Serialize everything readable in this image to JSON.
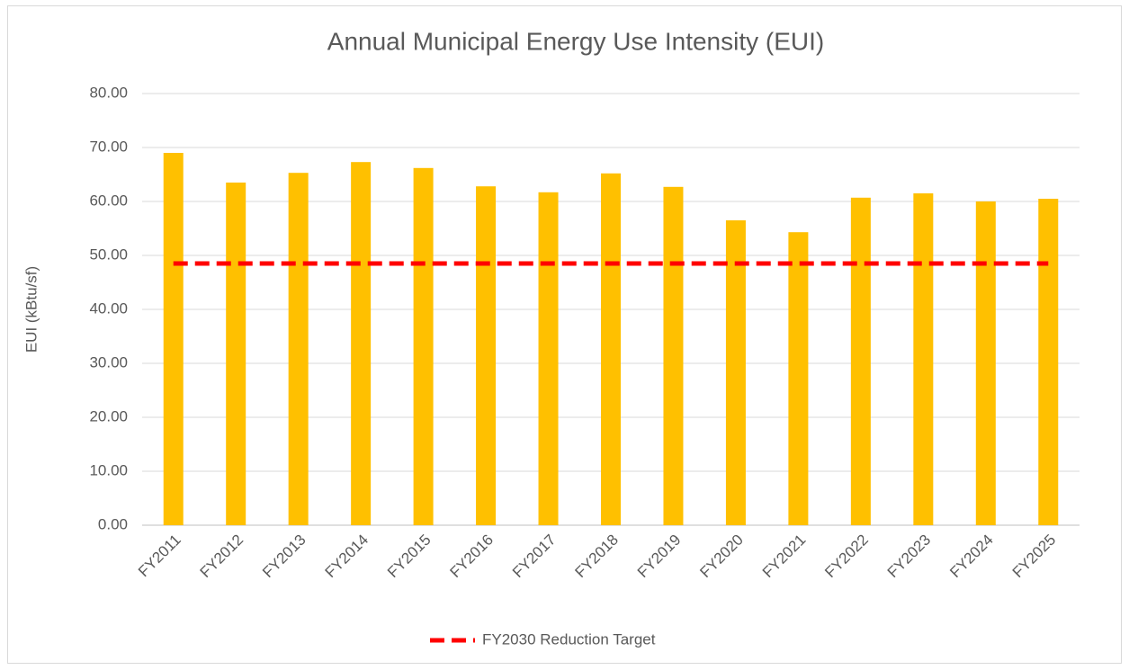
{
  "chart_data": {
    "type": "bar",
    "title": "Annual Municipal Energy Use Intensity (EUI)",
    "y_label": "EUI (kBtu/sf)",
    "categories": [
      "FY2011",
      "FY2012",
      "FY2013",
      "FY2014",
      "FY2015",
      "FY2016",
      "FY2017",
      "FY2018",
      "FY2019",
      "FY2020",
      "FY2021",
      "FY2022",
      "FY2023",
      "FY2024",
      "FY2025"
    ],
    "series": [
      {
        "type": "bar",
        "color": "#ffc000",
        "values": [
          69.0,
          63.5,
          65.3,
          67.3,
          66.2,
          62.8,
          61.7,
          65.2,
          62.7,
          56.5,
          54.3,
          60.7,
          61.5,
          60.0,
          60.5
        ]
      },
      {
        "name": "FY2030 Reduction Target",
        "type": "line",
        "dashed": true,
        "color": "#ff0000",
        "values": [
          48.5,
          48.5,
          48.5,
          48.5,
          48.5,
          48.5,
          48.5,
          48.5,
          48.5,
          48.5,
          48.5,
          48.5,
          48.5,
          48.5,
          48.5
        ]
      }
    ],
    "ylim": [
      0,
      80
    ],
    "yticks": [
      {
        "value": 0,
        "label": "0.00"
      },
      {
        "value": 10,
        "label": "10.00"
      },
      {
        "value": 20,
        "label": "20.00"
      },
      {
        "value": 30,
        "label": "30.00"
      },
      {
        "value": 40,
        "label": "40.00"
      },
      {
        "value": 50,
        "label": "50.00"
      },
      {
        "value": 60,
        "label": "60.00"
      },
      {
        "value": 70,
        "label": "70.00"
      },
      {
        "value": 80,
        "label": "80.00"
      }
    ],
    "grid": true,
    "legend": "bottom"
  }
}
